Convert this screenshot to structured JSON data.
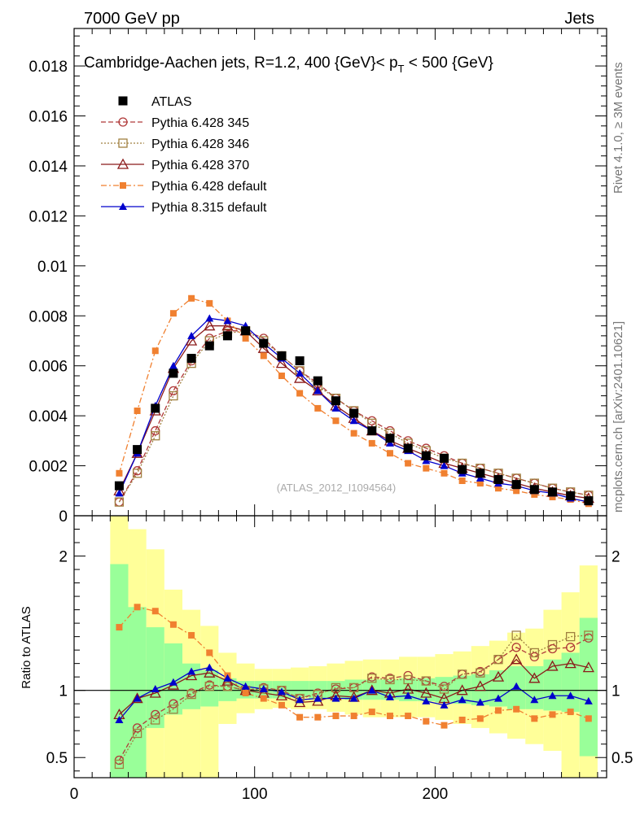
{
  "header": {
    "left": "7000 GeV pp",
    "right": "Jets",
    "side_top": "Rivet 4.1.0, ≥ 3M events",
    "side_bottom": "mcplots.cern.ch [arXiv:2401.10621]",
    "watermark": "(ATLAS_2012_I1094564)"
  },
  "chart_data": {
    "type": "line",
    "title_prefix": "Cambridge-Aachen jets, R=1.2, 400 {GeV}< p",
    "title_sub": "T",
    "title_suffix": " < 500 {GeV}",
    "x": [
      25,
      35,
      45,
      55,
      65,
      75,
      85,
      95,
      105,
      115,
      125,
      135,
      145,
      155,
      165,
      175,
      185,
      195,
      205,
      215,
      225,
      235,
      245,
      255,
      265,
      275,
      285
    ],
    "xlim": [
      0,
      295
    ],
    "xticks": [
      0,
      100,
      200
    ],
    "top_ylim": [
      0,
      0.0195
    ],
    "top_yticks": [
      "0",
      "0.002",
      "0.004",
      "0.006",
      "0.008",
      "0.01",
      "0.012",
      "0.014",
      "0.016",
      "0.018"
    ],
    "ratio_ylabel": "Ratio to ATLAS",
    "ratio_ylim": [
      0.35,
      2.3
    ],
    "ratio_yticks": [
      "0.5",
      "1",
      "2"
    ],
    "data": {
      "name": "ATLAS",
      "color": "#000000",
      "values": [
        0.0012,
        0.00265,
        0.0043,
        0.0057,
        0.0063,
        0.0068,
        0.0072,
        0.0074,
        0.0069,
        0.0064,
        0.0062,
        0.0054,
        0.0046,
        0.0041,
        0.0034,
        0.0031,
        0.0027,
        0.0024,
        0.0023,
        0.00185,
        0.0017,
        0.00145,
        0.00125,
        0.00105,
        0.00095,
        0.0008,
        0.0006
      ]
    },
    "series": [
      {
        "name": "Pythia 6.428 345",
        "color": "#b03a3a",
        "dash": "6,3",
        "marker": "circle",
        "values": [
          0.00055,
          0.0018,
          0.0034,
          0.005,
          0.0062,
          0.0071,
          0.0074,
          0.0074,
          0.0071,
          0.0064,
          0.0058,
          0.0053,
          0.0047,
          0.0042,
          0.0038,
          0.0034,
          0.003,
          0.0027,
          0.0024,
          0.0021,
          0.0019,
          0.0017,
          0.0015,
          0.0013,
          0.0011,
          0.00095,
          0.00082
        ]
      },
      {
        "name": "Pythia 6.428 346",
        "color": "#a08040",
        "dash": "2,2",
        "marker": "square",
        "values": [
          0.00055,
          0.0017,
          0.0032,
          0.0048,
          0.0061,
          0.007,
          0.0073,
          0.0074,
          0.007,
          0.0064,
          0.0058,
          0.0052,
          0.0047,
          0.0042,
          0.0037,
          0.0033,
          0.0029,
          0.0026,
          0.0023,
          0.0021,
          0.0019,
          0.0017,
          0.0015,
          0.0013,
          0.0011,
          0.00095,
          0.00082
        ]
      },
      {
        "name": "Pythia 6.428 370",
        "color": "#8b1a1a",
        "dash": "",
        "marker": "triangle-open",
        "values": [
          0.001,
          0.0025,
          0.0042,
          0.0059,
          0.007,
          0.0076,
          0.0076,
          0.0074,
          0.0067,
          0.0061,
          0.0055,
          0.005,
          0.0044,
          0.0039,
          0.0034,
          0.003,
          0.0027,
          0.0024,
          0.0021,
          0.0019,
          0.0017,
          0.0015,
          0.0013,
          0.0011,
          0.00095,
          0.0008,
          0.0007
        ]
      },
      {
        "name": "Pythia 6.428 default",
        "color": "#f08030",
        "dash": "7,3,2,3",
        "marker": "square-filled",
        "values": [
          0.0017,
          0.0042,
          0.0066,
          0.0081,
          0.0087,
          0.0085,
          0.0078,
          0.0071,
          0.0064,
          0.0056,
          0.0049,
          0.0043,
          0.0038,
          0.0033,
          0.0029,
          0.0025,
          0.0021,
          0.0019,
          0.0017,
          0.0014,
          0.0013,
          0.0011,
          0.001,
          0.00085,
          0.00075,
          0.00065,
          0.00048
        ]
      },
      {
        "name": "Pythia 8.315 default",
        "color": "#0000cc",
        "dash": "",
        "marker": "triangle-filled",
        "values": [
          0.0009,
          0.0025,
          0.0044,
          0.006,
          0.0072,
          0.0079,
          0.0078,
          0.0076,
          0.0069,
          0.0063,
          0.0057,
          0.005,
          0.0043,
          0.0038,
          0.0034,
          0.0029,
          0.0026,
          0.0022,
          0.002,
          0.0017,
          0.0015,
          0.0013,
          0.0012,
          0.001,
          0.0009,
          0.0007,
          0.00055
        ]
      }
    ],
    "ratio_series": [
      [
        0.48,
        0.72,
        0.82,
        0.9,
        0.98,
        1.04,
        1.03,
        1.0,
        1.02,
        1.0,
        0.94,
        0.98,
        1.01,
        1.02,
        1.1,
        1.09,
        1.11,
        1.07,
        1.03,
        1.12,
        1.14,
        1.23,
        1.32,
        1.25,
        1.31,
        1.32,
        1.39
      ],
      [
        0.45,
        0.68,
        0.78,
        0.86,
        0.97,
        1.03,
        1.03,
        1.0,
        1.01,
        1.0,
        0.94,
        0.97,
        1.02,
        1.02,
        1.09,
        1.08,
        1.08,
        1.07,
        1.01,
        1.12,
        1.13,
        1.23,
        1.41,
        1.28,
        1.34,
        1.4,
        1.41
      ],
      [
        0.82,
        0.94,
        0.98,
        1.04,
        1.11,
        1.13,
        1.07,
        1.0,
        0.98,
        0.96,
        0.91,
        0.92,
        0.96,
        0.95,
        1.0,
        0.98,
        1.01,
        0.98,
        0.94,
        1.0,
        1.03,
        1.1,
        1.23,
        1.09,
        1.18,
        1.2,
        1.17
      ],
      [
        1.47,
        1.62,
        1.59,
        1.49,
        1.41,
        1.28,
        1.11,
        0.98,
        0.94,
        0.89,
        0.8,
        0.8,
        0.81,
        0.81,
        0.84,
        0.81,
        0.81,
        0.77,
        0.74,
        0.78,
        0.79,
        0.85,
        0.86,
        0.79,
        0.82,
        0.84,
        0.79
      ],
      [
        0.78,
        0.94,
        1.01,
        1.06,
        1.14,
        1.17,
        1.09,
        1.03,
        1.01,
        0.99,
        0.93,
        0.94,
        0.94,
        0.94,
        1.0,
        0.95,
        0.96,
        0.92,
        0.89,
        0.93,
        0.91,
        0.94,
        1.03,
        0.93,
        0.96,
        0.96,
        0.92
      ]
    ],
    "band_inner": [
      [
        0.35,
        1.94
      ],
      [
        0.35,
        1.62
      ],
      [
        0.72,
        1.47
      ],
      [
        0.82,
        1.35
      ],
      [
        0.86,
        1.2
      ],
      [
        0.88,
        1.15
      ],
      [
        0.92,
        1.09
      ],
      [
        0.94,
        1.07
      ],
      [
        0.94,
        1.07
      ],
      [
        0.94,
        1.07
      ],
      [
        0.95,
        1.07
      ],
      [
        0.94,
        1.07
      ],
      [
        0.94,
        1.07
      ],
      [
        0.93,
        1.08
      ],
      [
        0.93,
        1.08
      ],
      [
        0.93,
        1.08
      ],
      [
        0.92,
        1.09
      ],
      [
        0.92,
        1.09
      ],
      [
        0.91,
        1.1
      ],
      [
        0.9,
        1.11
      ],
      [
        0.89,
        1.12
      ],
      [
        0.88,
        1.15
      ],
      [
        0.86,
        1.18
      ],
      [
        0.86,
        1.18
      ],
      [
        0.85,
        1.23
      ],
      [
        0.84,
        1.28
      ],
      [
        0.51,
        1.54
      ]
    ],
    "band_outer": [
      [
        0.35,
        2.3
      ],
      [
        0.35,
        2.2
      ],
      [
        0.35,
        2.05
      ],
      [
        0.35,
        1.75
      ],
      [
        0.35,
        1.6
      ],
      [
        0.35,
        1.48
      ],
      [
        0.75,
        1.28
      ],
      [
        0.83,
        1.2
      ],
      [
        0.86,
        1.16
      ],
      [
        0.87,
        1.16
      ],
      [
        0.86,
        1.17
      ],
      [
        0.86,
        1.18
      ],
      [
        0.84,
        1.2
      ],
      [
        0.82,
        1.22
      ],
      [
        0.8,
        1.23
      ],
      [
        0.8,
        1.23
      ],
      [
        0.8,
        1.25
      ],
      [
        0.8,
        1.25
      ],
      [
        0.78,
        1.27
      ],
      [
        0.75,
        1.29
      ],
      [
        0.72,
        1.33
      ],
      [
        0.68,
        1.37
      ],
      [
        0.64,
        1.43
      ],
      [
        0.6,
        1.46
      ],
      [
        0.55,
        1.6
      ],
      [
        0.35,
        1.73
      ],
      [
        0.35,
        1.93
      ]
    ]
  }
}
